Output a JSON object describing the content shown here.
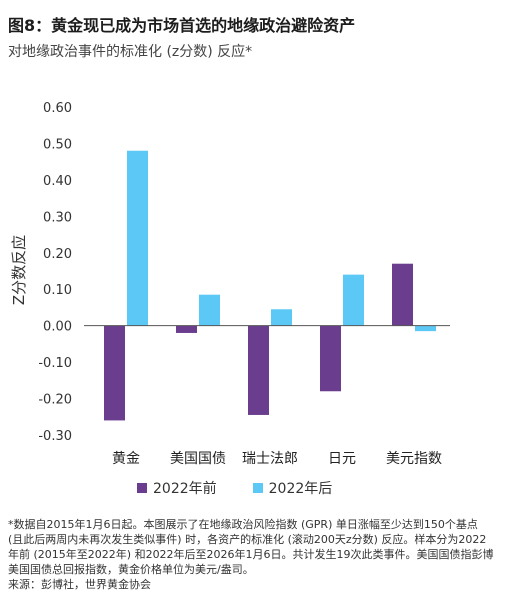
{
  "header": {
    "title": "图8：黄金现已成为市场首选的地缘政治避险资产",
    "subtitle": "对地缘政治事件的标准化 (z分数) 反应*"
  },
  "chart_data": {
    "type": "bar",
    "categories": [
      "黄金",
      "美国国债",
      "瑞士法郎",
      "日元",
      "美元指数"
    ],
    "series": [
      {
        "name": "2022年前",
        "color": "#6a3d8f",
        "values": [
          -0.26,
          -0.02,
          -0.245,
          -0.18,
          0.17
        ]
      },
      {
        "name": "2022年后",
        "color": "#5bc8f5",
        "values": [
          0.48,
          0.085,
          0.045,
          0.14,
          -0.015
        ]
      }
    ],
    "ylabel": "Z分数反应",
    "ylim": [
      -0.3,
      0.6
    ],
    "yticks": [
      "-0.30",
      "-0.20",
      "-0.10",
      "0.00",
      "0.10",
      "0.20",
      "0.30",
      "0.40",
      "0.50",
      "0.60"
    ],
    "legend": "bottom",
    "grid": false
  },
  "footnote": {
    "lines": [
      "*数据自2015年1月6日起。本图展示了在地缘政治风险指数 (GPR) 单日涨幅至少达到150个基点",
      "(且此后两周内未再次发生类似事件) 时，各资产的标准化 (滚动200天z分数) 反应。样本分为2022",
      "年前 (2015年至2022年) 和2022年后至2026年1月6日。共计发生19次此类事件。美国国债指彭博",
      "美国国债总回报指数，黄金价格单位为美元/盎司。",
      "来源：彭博社，世界黄金协会"
    ]
  }
}
